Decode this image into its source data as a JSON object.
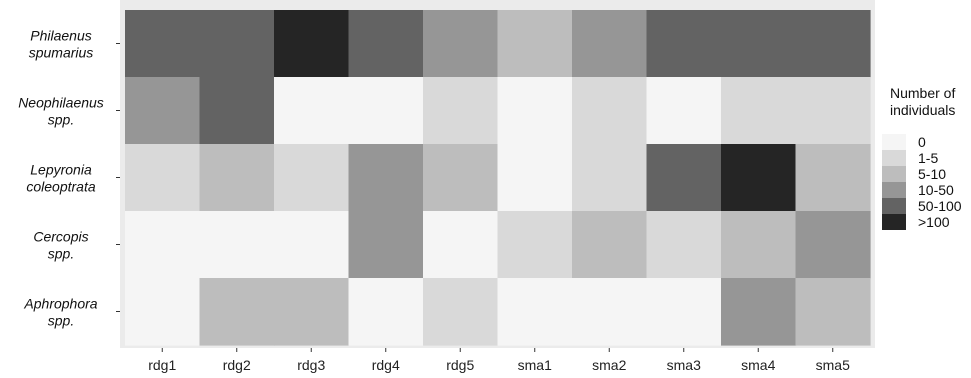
{
  "chart_data": {
    "type": "heatmap",
    "x_categories": [
      "rdg1",
      "rdg2",
      "rdg3",
      "rdg4",
      "rdg5",
      "sma1",
      "sma2",
      "sma3",
      "sma4",
      "sma5"
    ],
    "y_categories": [
      [
        "Philaenus",
        "spumarius"
      ],
      [
        "Neophilaenus",
        "spp."
      ],
      [
        "Lepyronia",
        "coleoptrata"
      ],
      [
        "Cercopis",
        "spp."
      ],
      [
        "Aphrophora",
        "spp."
      ]
    ],
    "values": [
      [
        "50-100",
        "50-100",
        ">100",
        "50-100",
        "10-50",
        "5-10",
        "10-50",
        "50-100",
        "50-100",
        "50-100"
      ],
      [
        "10-50",
        "50-100",
        "0",
        "0",
        "1-5",
        "0",
        "1-5",
        "0",
        "1-5",
        "1-5"
      ],
      [
        "1-5",
        "5-10",
        "1-5",
        "10-50",
        "5-10",
        "0",
        "1-5",
        "50-100",
        ">100",
        "5-10"
      ],
      [
        "0",
        "0",
        "0",
        "10-50",
        "0",
        "1-5",
        "5-10",
        "1-5",
        "5-10",
        "10-50"
      ],
      [
        "0",
        "5-10",
        "5-10",
        "0",
        "1-5",
        "0",
        "0",
        "0",
        "10-50",
        "5-10"
      ]
    ],
    "legend": {
      "title": [
        "Number of",
        "individuals"
      ],
      "levels": [
        "0",
        "1-5",
        "5-10",
        "10-50",
        "50-100",
        ">100"
      ],
      "colors": [
        "#f5f5f5",
        "#d9d9d9",
        "#bdbdbd",
        "#969696",
        "#636363",
        "#252525"
      ],
      "placement": "right"
    },
    "panel_background": "#ebebeb",
    "grid": false
  }
}
